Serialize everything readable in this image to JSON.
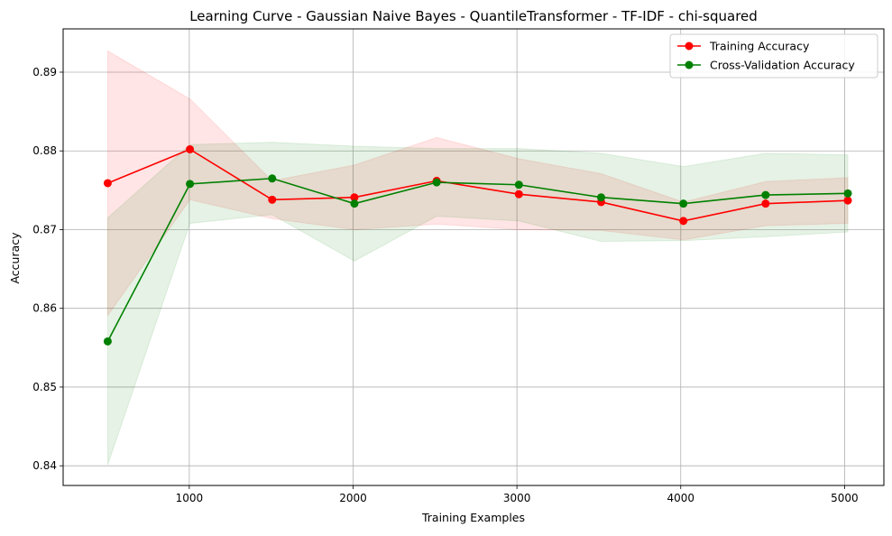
{
  "chart_data": {
    "type": "line",
    "title": "Learning Curve - Gaussian Naive Bayes - QuantileTransformer - TF-IDF - chi-squared",
    "xlabel": "Training Examples",
    "ylabel": "Accuracy",
    "xlim": [
      230,
      5240
    ],
    "ylim": [
      0.8375,
      0.8955
    ],
    "xticks": [
      1000,
      2000,
      3000,
      4000,
      5000
    ],
    "yticks": [
      0.84,
      0.85,
      0.86,
      0.87,
      0.88,
      0.89
    ],
    "xtick_labels": [
      "1000",
      "2000",
      "3000",
      "4000",
      "5000"
    ],
    "ytick_labels": [
      "0.84",
      "0.85",
      "0.86",
      "0.87",
      "0.88",
      "0.89"
    ],
    "grid": true,
    "legend_position": "top-right",
    "x": [
      502,
      1004,
      1506,
      2008,
      2510,
      3012,
      3514,
      4016,
      4518,
      5020
    ],
    "series": [
      {
        "name": "Training Accuracy",
        "color": "#ff0000",
        "band_color": "#ffcccc",
        "values": [
          0.8759,
          0.8802,
          0.8738,
          0.8741,
          0.8762,
          0.8745,
          0.8735,
          0.8711,
          0.8733,
          0.8737
        ],
        "upper": [
          0.8927,
          0.8866,
          0.8762,
          0.8782,
          0.8817,
          0.879,
          0.8771,
          0.8735,
          0.8761,
          0.8766
        ],
        "lower": [
          0.8591,
          0.8738,
          0.8714,
          0.87,
          0.8707,
          0.87,
          0.8699,
          0.8687,
          0.8705,
          0.8708
        ]
      },
      {
        "name": "Cross-Validation Accuracy",
        "color": "#008000",
        "band_color": "#b3dfb3",
        "values": [
          0.8558,
          0.8758,
          0.8765,
          0.8733,
          0.876,
          0.8757,
          0.8741,
          0.8733,
          0.8744,
          0.8746
        ],
        "upper": [
          0.8715,
          0.8808,
          0.8811,
          0.8806,
          0.8803,
          0.8803,
          0.8797,
          0.878,
          0.8797,
          0.8795
        ],
        "lower": [
          0.8401,
          0.8708,
          0.8719,
          0.866,
          0.8717,
          0.8711,
          0.8685,
          0.8686,
          0.8691,
          0.8697
        ]
      }
    ]
  }
}
